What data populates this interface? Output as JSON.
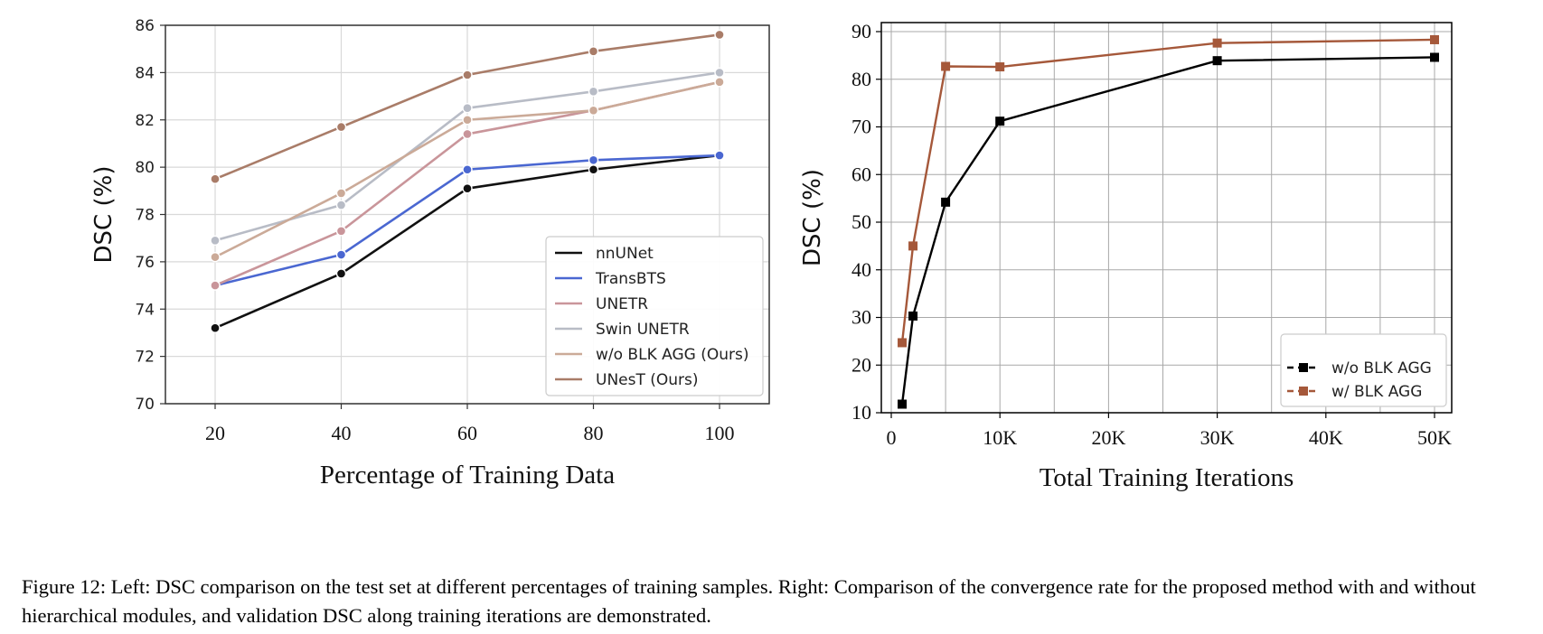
{
  "chart_data": [
    {
      "type": "line",
      "title": "",
      "xlabel": "Percentage of Training Data",
      "ylabel": "DSC (%)",
      "x": [
        20,
        40,
        60,
        80,
        100
      ],
      "ylim": [
        70,
        86
      ],
      "yticks": [
        70,
        72,
        74,
        76,
        78,
        80,
        82,
        84,
        86
      ],
      "grid": true,
      "legend_position": "lower-right",
      "series": [
        {
          "name": "nnUNet",
          "color": "#111111",
          "values": [
            73.2,
            75.5,
            79.1,
            79.9,
            80.5
          ]
        },
        {
          "name": "TransBTS",
          "color": "#4a67d1",
          "values": [
            75.0,
            76.3,
            79.9,
            80.3,
            80.5
          ]
        },
        {
          "name": "UNETR",
          "color": "#c9959a",
          "values": [
            75.0,
            77.3,
            81.4,
            82.4,
            83.6
          ]
        },
        {
          "name": "Swin UNETR",
          "color": "#b8bcc6",
          "values": [
            76.9,
            78.4,
            82.5,
            83.2,
            84.0
          ]
        },
        {
          "name": "w/o BLK AGG (Ours)",
          "color": "#cbaa98",
          "values": [
            76.2,
            78.9,
            82.0,
            82.4,
            83.6
          ]
        },
        {
          "name": "UNesT (Ours)",
          "color": "#a97c68",
          "values": [
            79.5,
            81.7,
            83.9,
            84.9,
            85.6
          ]
        }
      ]
    },
    {
      "type": "line",
      "title": "",
      "xlabel": "Total Training Iterations",
      "ylabel": "DSC (%)",
      "xlim": [
        0,
        50000
      ],
      "xtick_labels": [
        "0",
        "10K",
        "20K",
        "30K",
        "40K",
        "50K"
      ],
      "ylim": [
        10,
        90
      ],
      "yticks": [
        10,
        20,
        30,
        40,
        50,
        60,
        70,
        80,
        90
      ],
      "grid": true,
      "legend_position": "lower-right",
      "series": [
        {
          "name": "w/o BLK AGG",
          "color": "#000000",
          "points": [
            [
              1000,
              11.8
            ],
            [
              2000,
              30.3
            ],
            [
              5000,
              54.2
            ],
            [
              10000,
              71.2
            ],
            [
              30000,
              83.9
            ],
            [
              50000,
              84.6
            ]
          ]
        },
        {
          "name": "w/ BLK AGG",
          "color": "#a5583a",
          "points": [
            [
              1000,
              24.7
            ],
            [
              2000,
              45.0
            ],
            [
              5000,
              82.7
            ],
            [
              10000,
              82.6
            ],
            [
              30000,
              87.6
            ],
            [
              50000,
              88.3
            ]
          ]
        }
      ]
    }
  ],
  "caption": "Figure 12: Left: DSC comparison on the test set at different percentages of training samples. Right: Comparison of the convergence rate for the proposed method with and without hierarchical modules, and validation DSC along training iterations are demonstrated."
}
